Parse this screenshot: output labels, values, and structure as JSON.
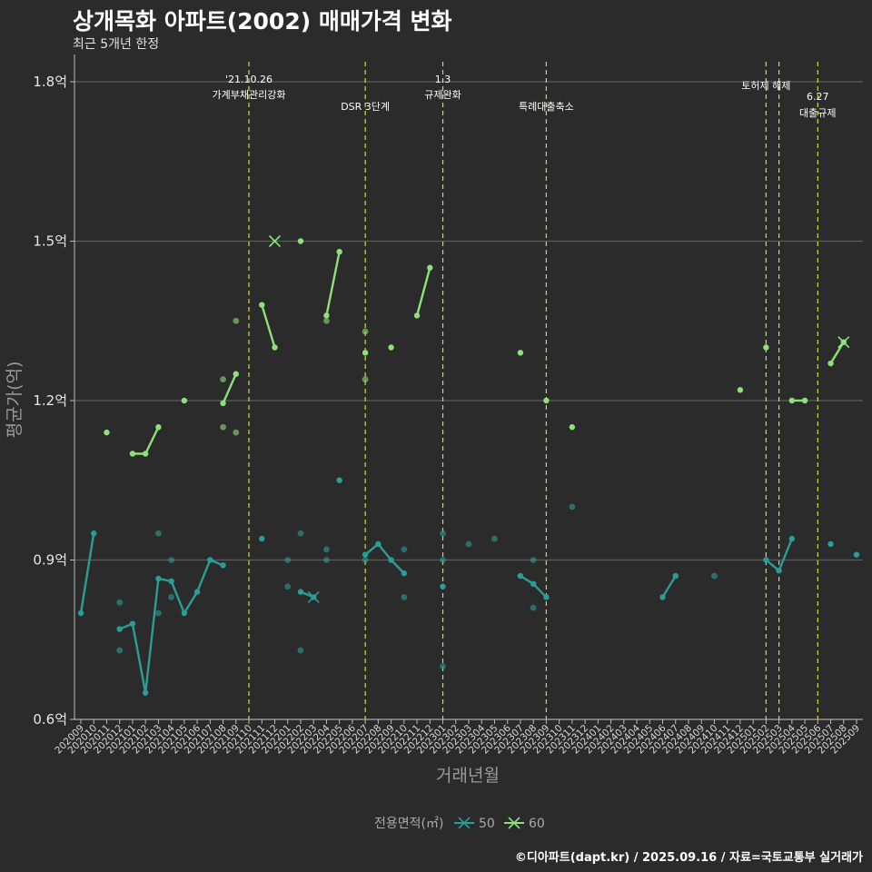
{
  "title": "상개목화 아파트(2002) 매매가격 변화",
  "subtitle": "최근 5개년 한정",
  "caption": "©디아파트(dapt.kr) / 2025.09.16 / 자료=국토교통부 실거래가",
  "chart_data": {
    "type": "line",
    "xlabel": "거래년월",
    "ylabel": "평균가(억)",
    "ylim": [
      0.6,
      1.8
    ],
    "yticks": [
      {
        "value": 0.6,
        "label": "0.6억"
      },
      {
        "value": 0.9,
        "label": "0.9억"
      },
      {
        "value": 1.2,
        "label": "1.2억"
      },
      {
        "value": 1.5,
        "label": "1.5억"
      },
      {
        "value": 1.8,
        "label": "1.8억"
      }
    ],
    "x": [
      "202009",
      "202010",
      "202011",
      "202012",
      "202101",
      "202102",
      "202103",
      "202104",
      "202105",
      "202106",
      "202107",
      "202108",
      "202109",
      "202110",
      "202111",
      "202112",
      "202201",
      "202202",
      "202203",
      "202204",
      "202205",
      "202206",
      "202207",
      "202208",
      "202209",
      "202210",
      "202211",
      "202212",
      "202301",
      "202302",
      "202303",
      "202304",
      "202305",
      "202306",
      "202307",
      "202308",
      "202309",
      "202310",
      "202311",
      "202312",
      "202401",
      "202402",
      "202403",
      "202404",
      "202405",
      "202406",
      "202407",
      "202408",
      "202409",
      "202410",
      "202411",
      "202412",
      "202501",
      "202502",
      "202503",
      "202504",
      "202505",
      "202506",
      "202507",
      "202508",
      "202509"
    ],
    "series": [
      {
        "name": "50",
        "color": "#2a9d96",
        "values": [
          0.8,
          0.95,
          null,
          0.77,
          0.78,
          0.65,
          0.865,
          0.86,
          0.8,
          0.84,
          0.9,
          0.89,
          null,
          null,
          0.94,
          null,
          null,
          0.84,
          0.83,
          null,
          1.05,
          null,
          0.91,
          0.93,
          0.9,
          0.875,
          null,
          null,
          0.85,
          null,
          null,
          null,
          null,
          null,
          0.87,
          0.855,
          0.83,
          null,
          null,
          null,
          null,
          null,
          null,
          null,
          null,
          0.83,
          0.87,
          null,
          null,
          null,
          null,
          null,
          null,
          0.9,
          0.88,
          0.94,
          null,
          null,
          0.93,
          null,
          0.91
        ],
        "points": [
          {
            "x": "202012",
            "y": 0.82
          },
          {
            "x": "202012",
            "y": 0.73
          },
          {
            "x": "202103",
            "y": 0.95
          },
          {
            "x": "202103",
            "y": 0.8
          },
          {
            "x": "202104",
            "y": 0.9
          },
          {
            "x": "202104",
            "y": 0.83
          },
          {
            "x": "202201",
            "y": 0.9
          },
          {
            "x": "202201",
            "y": 0.85
          },
          {
            "x": "202202",
            "y": 0.95
          },
          {
            "x": "202202",
            "y": 0.73
          },
          {
            "x": "202204",
            "y": 0.92
          },
          {
            "x": "202204",
            "y": 0.9
          },
          {
            "x": "202207",
            "y": 0.9
          },
          {
            "x": "202210",
            "y": 0.92
          },
          {
            "x": "202210",
            "y": 0.83
          },
          {
            "x": "202301",
            "y": 0.95
          },
          {
            "x": "202301",
            "y": 0.9
          },
          {
            "x": "202301",
            "y": 0.7
          },
          {
            "x": "202303",
            "y": 0.93
          },
          {
            "x": "202305",
            "y": 0.94
          },
          {
            "x": "202308",
            "y": 0.9
          },
          {
            "x": "202308",
            "y": 0.81
          },
          {
            "x": "202311",
            "y": 1.0
          },
          {
            "x": "202410",
            "y": 0.87
          }
        ],
        "crosses": [
          {
            "x": "202203",
            "y": 0.83
          }
        ]
      },
      {
        "name": "60",
        "color": "#8ee07a",
        "values": [
          null,
          null,
          1.14,
          null,
          1.1,
          1.1,
          1.15,
          null,
          1.2,
          null,
          null,
          1.195,
          1.25,
          null,
          1.38,
          1.3,
          null,
          1.5,
          null,
          1.36,
          1.48,
          null,
          1.29,
          null,
          1.3,
          null,
          1.36,
          1.45,
          null,
          null,
          null,
          null,
          null,
          null,
          1.29,
          null,
          1.2,
          null,
          1.15,
          null,
          null,
          null,
          null,
          null,
          null,
          null,
          null,
          null,
          null,
          null,
          null,
          1.22,
          null,
          1.3,
          null,
          1.2,
          1.2,
          null,
          1.27,
          1.31,
          null
        ],
        "points": [
          {
            "x": "202108",
            "y": 1.24
          },
          {
            "x": "202108",
            "y": 1.15
          },
          {
            "x": "202109",
            "y": 1.35
          },
          {
            "x": "202109",
            "y": 1.14
          },
          {
            "x": "202204",
            "y": 1.35
          },
          {
            "x": "202207",
            "y": 1.33
          },
          {
            "x": "202207",
            "y": 1.24
          }
        ],
        "crosses": [
          {
            "x": "202112",
            "y": 1.5
          },
          {
            "x": "202508",
            "y": 1.31
          }
        ]
      }
    ],
    "annotations": [
      {
        "x": "202110",
        "lines": [
          "'21.10.26",
          "가계부채관리강화"
        ]
      },
      {
        "x": "202207",
        "lines": [
          "DSR 3단계"
        ]
      },
      {
        "x": "202301",
        "lines": [
          "1.3",
          "규제완화"
        ]
      },
      {
        "x": "202309",
        "lines": [
          "특례대출축소"
        ]
      },
      {
        "x": "202502",
        "lines": [
          "토허제 해제"
        ]
      },
      {
        "x": "202503",
        "lines": []
      },
      {
        "x": "202506",
        "lines": [
          "6.27",
          "대출규제"
        ]
      }
    ],
    "legend": {
      "title": "전용면적(㎡)",
      "position": "bottom"
    },
    "grid": true
  }
}
